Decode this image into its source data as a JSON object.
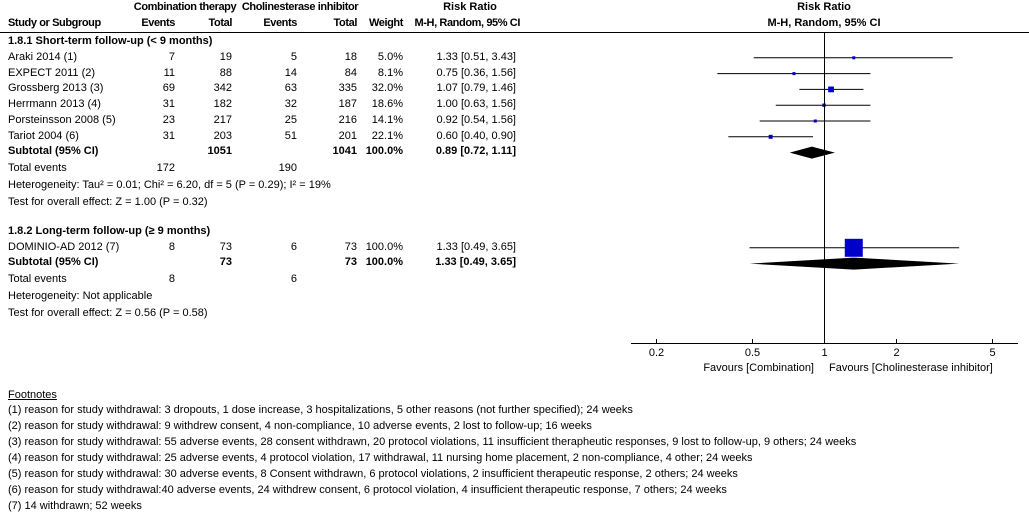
{
  "header": {
    "study_col": "Study or Subgroup",
    "group1": "Combination therapy",
    "group2": "Cholinesterase inhibitor",
    "events": "Events",
    "total": "Total",
    "weight": "Weight",
    "rr_title": "Risk Ratio",
    "rr_sub": "M-H, Random, 95% CI",
    "plot_title": "Risk Ratio",
    "plot_sub": "M-H, Random, 95% CI"
  },
  "chart_data": {
    "type": "forest",
    "x_scale": "log",
    "xlim": [
      0.17,
      6.5
    ],
    "x_ticks": [
      "0.2",
      "0.5",
      "1",
      "2",
      "5"
    ],
    "x_tick_values": [
      0.2,
      0.5,
      1,
      2,
      5
    ],
    "favours_left": "Favours [Combination]",
    "favours_right": "Favours [Cholinesterase inhibitor]",
    "marker_color": "#0000cc",
    "subgroups": [
      {
        "title": "1.8.1 Short-term follow-up (< 9 months)",
        "studies": [
          {
            "name": "Araki 2014 (1)",
            "e1": "7",
            "t1": "19",
            "e2": "5",
            "t2": "18",
            "weight": "5.0%",
            "rr_text": "1.33 [0.51, 3.43]",
            "rr": 1.33,
            "lo": 0.51,
            "hi": 3.43,
            "w": 5.0
          },
          {
            "name": "EXPECT 2011 (2)",
            "e1": "11",
            "t1": "88",
            "e2": "14",
            "t2": "84",
            "weight": "8.1%",
            "rr_text": "0.75 [0.36, 1.56]",
            "rr": 0.75,
            "lo": 0.36,
            "hi": 1.56,
            "w": 8.1
          },
          {
            "name": "Grossberg 2013 (3)",
            "e1": "69",
            "t1": "342",
            "e2": "63",
            "t2": "335",
            "weight": "32.0%",
            "rr_text": "1.07 [0.79, 1.46]",
            "rr": 1.07,
            "lo": 0.79,
            "hi": 1.46,
            "w": 32.0
          },
          {
            "name": "Herrmann 2013 (4)",
            "e1": "31",
            "t1": "182",
            "e2": "32",
            "t2": "187",
            "weight": "18.6%",
            "rr_text": "1.00 [0.63, 1.56]",
            "rr": 1.0,
            "lo": 0.63,
            "hi": 1.56,
            "w": 18.6
          },
          {
            "name": "Porsteinsson 2008 (5)",
            "e1": "23",
            "t1": "217",
            "e2": "25",
            "t2": "216",
            "weight": "14.1%",
            "rr_text": "0.92 [0.54, 1.56]",
            "rr": 0.92,
            "lo": 0.54,
            "hi": 1.56,
            "w": 14.1
          },
          {
            "name": "Tariot 2004 (6)",
            "e1": "31",
            "t1": "203",
            "e2": "51",
            "t2": "201",
            "weight": "22.1%",
            "rr_text": "0.60 [0.40, 0.90]",
            "rr": 0.6,
            "lo": 0.4,
            "hi": 0.9,
            "w": 22.1
          }
        ],
        "subtotal": {
          "label": "Subtotal (95% CI)",
          "t1": "1051",
          "t2": "1041",
          "weight": "100.0%",
          "rr_text": "0.89 [0.72, 1.11]",
          "rr": 0.89,
          "lo": 0.72,
          "hi": 1.11
        },
        "total_events": {
          "label": "Total events",
          "e1": "172",
          "e2": "190"
        },
        "heterogeneity": "Heterogeneity: Tau² = 0.01; Chi² = 6.20, df = 5 (P = 0.29); I² = 19%",
        "overall": "Test for overall effect: Z = 1.00 (P = 0.32)"
      },
      {
        "title": "1.8.2 Long-term follow-up (≥ 9 months)",
        "studies": [
          {
            "name": "DOMINIO-AD 2012 (7)",
            "e1": "8",
            "t1": "73",
            "e2": "6",
            "t2": "73",
            "weight": "100.0%",
            "rr_text": "1.33 [0.49, 3.65]",
            "rr": 1.33,
            "lo": 0.49,
            "hi": 3.65,
            "w": 100.0
          }
        ],
        "subtotal": {
          "label": "Subtotal (95% CI)",
          "t1": "73",
          "t2": "73",
          "weight": "100.0%",
          "rr_text": "1.33 [0.49, 3.65]",
          "rr": 1.33,
          "lo": 0.49,
          "hi": 3.65
        },
        "total_events": {
          "label": "Total events",
          "e1": "8",
          "e2": "6"
        },
        "heterogeneity": "Heterogeneity: Not applicable",
        "overall": "Test for overall effect: Z = 0.56 (P = 0.58)"
      }
    ]
  },
  "footnotes": {
    "title": "Footnotes",
    "items": [
      "(1) reason for study withdrawal: 3 dropouts, 1 dose increase, 3 hospitalizations, 5 other reasons (not further specified); 24 weeks",
      "(2) reason for study withdrawal: 9 withdrew consent, 4 non-compliance, 10 adverse events, 2 lost to follow-up; 16 weeks",
      "(3) reason for study withdrawal: 55 adverse events, 28 consent withdrawn, 20 protocol violations, 11 insufficient therapheutic responses, 9 lost to follow-up, 9 others; 24 weeks",
      "(4) reason for study withdrawal: 25 adverse events, 4 protocol violation, 17 withdrawal, 11 nursing home placement, 2 non-compliance, 4 other; 24 weeks",
      "(5) reason for study withdrawal: 30 adverse events, 8 Consent withdrawn, 6 protocol violations, 2 insufficient therapeutic response, 2 others; 24 weeks",
      "(6) reason for study withdrawal:40 adverse events, 24 withdrew consent, 6 protocol violation, 4 insufficient therapeutic response, 7 others; 24 weeks",
      "(7) 14 withdrawn; 52 weeks"
    ]
  }
}
